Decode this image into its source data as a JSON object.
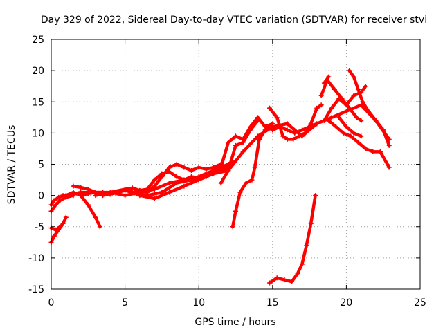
{
  "chart_data": {
    "type": "scatter",
    "title": "Day 329 of 2022, Sidereal Day-to-day VTEC variation (SDTVAR) for receiver stvi",
    "xlabel": "GPS time / hours",
    "ylabel": "SDTVAR / TECUs",
    "xlim": [
      0,
      25
    ],
    "ylim": [
      -15,
      25
    ],
    "xticks": [
      0,
      5,
      10,
      15,
      20,
      25
    ],
    "yticks": [
      -15,
      -10,
      -5,
      0,
      5,
      10,
      15,
      20,
      25
    ],
    "grid": true,
    "marker": "plus",
    "color": "#ff0000",
    "series": [
      {
        "name": "s1",
        "x": [
          0,
          0.2,
          0.5,
          0.8,
          1.0
        ],
        "y": [
          -1.5,
          -0.8,
          -0.3,
          0.0,
          -0.2
        ]
      },
      {
        "name": "s2",
        "x": [
          0,
          0.2,
          0.5,
          0.8,
          1.0
        ],
        "y": [
          -7.5,
          -6.5,
          -5.5,
          -4.5,
          -3.5
        ]
      },
      {
        "name": "s3",
        "x": [
          0,
          0.3,
          0.6
        ],
        "y": [
          -5.2,
          -5.5,
          -5.0
        ]
      },
      {
        "name": "s4",
        "x": [
          0,
          0.3,
          0.6,
          1.0,
          1.5
        ],
        "y": [
          -2.5,
          -1.5,
          -0.8,
          -0.3,
          0.0
        ]
      },
      {
        "name": "s5",
        "x": [
          1.5,
          2,
          2.5,
          3,
          3.5,
          4,
          4.5,
          5,
          5.5,
          6,
          6.5,
          7,
          7.5,
          8,
          8.5,
          9,
          9.5,
          10,
          10.5,
          11,
          11.5
        ],
        "y": [
          1.5,
          1.3,
          1.0,
          0.5,
          0.0,
          0.3,
          0.5,
          1.0,
          1.2,
          0.8,
          0.5,
          1.5,
          3.0,
          4.5,
          5.0,
          4.5,
          4.0,
          4.5,
          4.2,
          4.5,
          5.0
        ]
      },
      {
        "name": "s6",
        "x": [
          1.0,
          1.5,
          2,
          2.5,
          3,
          3.3
        ],
        "y": [
          0.0,
          0.5,
          0.0,
          -1.5,
          -3.5,
          -5.0
        ]
      },
      {
        "name": "s7",
        "x": [
          2,
          2.5,
          3,
          3.5,
          4,
          4.5,
          5,
          5.5,
          6,
          6.5,
          7,
          7.5,
          8,
          8.5,
          9,
          9.5,
          10,
          10.5,
          11,
          11.5,
          12
        ],
        "y": [
          0.0,
          0.3,
          0.5,
          0.5,
          0.2,
          0.5,
          0.8,
          0.5,
          0.8,
          1.0,
          2.5,
          3.5,
          3.8,
          3.0,
          2.5,
          3.0,
          2.8,
          3.5,
          4.0,
          4.0,
          4.5
        ]
      },
      {
        "name": "s8",
        "x": [
          1.0,
          2,
          3,
          4,
          5,
          6,
          7,
          8,
          9,
          10,
          11,
          12,
          12.3
        ],
        "y": [
          0.0,
          0.5,
          0.5,
          0.5,
          0.0,
          0.5,
          1.0,
          2.0,
          2.5,
          3.0,
          4.0,
          5.0,
          5.5
        ]
      },
      {
        "name": "s9",
        "x": [
          3,
          4,
          5,
          6,
          7,
          8,
          9,
          10,
          11,
          12,
          13,
          14,
          15,
          16,
          17,
          18,
          19,
          20,
          21,
          22,
          22.9
        ],
        "y": [
          0.0,
          0.5,
          1.0,
          0.0,
          -0.5,
          0.5,
          1.5,
          2.5,
          3.5,
          4.0,
          7.0,
          9.5,
          11.0,
          11.5,
          9.5,
          11.5,
          12.5,
          13.5,
          14.5,
          12.0,
          9.0
        ]
      },
      {
        "name": "s10",
        "x": [
          5.5,
          6.5,
          7.5,
          8.5,
          9.5,
          10.5,
          11,
          11.5,
          12,
          12.5,
          13,
          13.5,
          14,
          14.5,
          15
        ],
        "y": [
          0.5,
          0.0,
          0.5,
          2.0,
          2.5,
          3.0,
          4.0,
          4.5,
          8.5,
          9.5,
          9.0,
          11.0,
          12.5,
          11.0,
          11.5
        ]
      },
      {
        "name": "s11",
        "x": [
          11.5,
          12,
          12.5,
          13,
          13.5,
          14
        ],
        "y": [
          2.0,
          4.0,
          8.0,
          8.5,
          10.5,
          12.0
        ]
      },
      {
        "name": "s12",
        "x": [
          12.3,
          12.5,
          12.8,
          13.2,
          13.6,
          13.8,
          14.1,
          14.5,
          14.8,
          15
        ],
        "y": [
          -5.0,
          -2.5,
          0.5,
          2.0,
          2.5,
          4.5,
          9.0,
          10.5,
          11.0,
          10.5
        ]
      },
      {
        "name": "s13",
        "x": [
          14.8,
          15.3,
          15.7,
          16,
          16.4,
          16.8,
          17.2,
          17.6,
          18,
          18.3
        ],
        "y": [
          14.0,
          12.5,
          9.5,
          9.0,
          9.0,
          9.5,
          10.0,
          11.5,
          14.0,
          14.5
        ]
      },
      {
        "name": "s14",
        "x": [
          15,
          15.5,
          16,
          16.5,
          17,
          17.5,
          18
        ],
        "y": [
          10.5,
          11.0,
          10.5,
          10.0,
          10.5,
          11.0,
          11.5
        ]
      },
      {
        "name": "s15",
        "x": [
          14.8,
          15.3,
          15.8,
          16.3,
          16.7,
          17,
          17.3,
          17.6,
          17.9
        ],
        "y": [
          -14.0,
          -13.2,
          -13.5,
          -13.8,
          -12.5,
          -11.0,
          -8.0,
          -4.5,
          0.0
        ]
      },
      {
        "name": "s16",
        "x": [
          18.5,
          19,
          19.5,
          20,
          20.5,
          21,
          21.3
        ],
        "y": [
          12.0,
          14.0,
          15.5,
          14.5,
          16.0,
          16.5,
          17.5
        ]
      },
      {
        "name": "s17",
        "x": [
          18.3,
          18.7,
          19.2,
          19.7,
          20.2,
          20.7,
          21
        ],
        "y": [
          16.0,
          18.5,
          17.0,
          15.5,
          14.0,
          12.5,
          12.0
        ]
      },
      {
        "name": "s18",
        "x": [
          18.5,
          18.8
        ],
        "y": [
          18.0,
          19.0
        ]
      },
      {
        "name": "s19",
        "x": [
          18.8,
          19.3,
          19.8,
          20.3,
          20.8,
          21.3,
          21.8,
          22.3,
          22.9
        ],
        "y": [
          12.0,
          11.0,
          10.0,
          9.5,
          8.5,
          7.5,
          7.0,
          7.0,
          4.5
        ]
      },
      {
        "name": "s20",
        "x": [
          19.5,
          20,
          20.5,
          21
        ],
        "y": [
          12.5,
          11.0,
          10.0,
          9.5
        ]
      },
      {
        "name": "s21",
        "x": [
          20.2,
          20.5,
          20.8,
          21.1,
          21.5,
          22,
          22.5,
          22.9
        ],
        "y": [
          20.0,
          19.0,
          17.0,
          15.0,
          13.5,
          12.0,
          10.5,
          8.0
        ]
      }
    ]
  }
}
